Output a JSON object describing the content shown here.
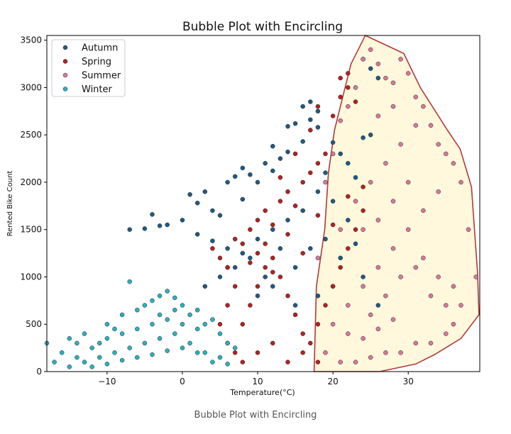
{
  "caption": "Bubble Plot with Encircling",
  "chart_data": {
    "type": "scatter",
    "title": "Bubble Plot with Encircling",
    "xlabel": "Temperature(°C)",
    "ylabel": "Rented Bike Count",
    "xlim": [
      -18,
      39.5
    ],
    "ylim": [
      0,
      3550
    ],
    "xticks": [
      -10,
      0,
      10,
      20,
      30
    ],
    "yticks": [
      0,
      500,
      1000,
      1500,
      2000,
      2500,
      3000,
      3500
    ],
    "xtick_labels": [
      "−10",
      "0",
      "10",
      "20",
      "30"
    ],
    "ytick_labels": [
      "0",
      "500",
      "1000",
      "1500",
      "2000",
      "2500",
      "3000",
      "3500"
    ],
    "grid": false,
    "legend_position": "top-left",
    "series": [
      {
        "name": "Autumn",
        "color": "#1f5a85",
        "points": [
          [
            -7,
            1500
          ],
          [
            -5,
            1510
          ],
          [
            -4,
            1660
          ],
          [
            -3,
            1540
          ],
          [
            -2,
            1550
          ],
          [
            0,
            1600
          ],
          [
            1,
            1870
          ],
          [
            2,
            1780
          ],
          [
            3,
            1900
          ],
          [
            4,
            1700
          ],
          [
            5,
            1650
          ],
          [
            6,
            2000
          ],
          [
            7,
            2060
          ],
          [
            8,
            1820
          ],
          [
            8,
            2150
          ],
          [
            9,
            2080
          ],
          [
            10,
            2000
          ],
          [
            11,
            2200
          ],
          [
            12,
            2120
          ],
          [
            12,
            2380
          ],
          [
            13,
            2250
          ],
          [
            14,
            2320
          ],
          [
            14,
            2590
          ],
          [
            15,
            2620
          ],
          [
            16,
            2430
          ],
          [
            16,
            2800
          ],
          [
            17,
            2660
          ],
          [
            17,
            2850
          ],
          [
            18,
            2750
          ],
          [
            18,
            2580
          ],
          [
            19,
            2100
          ],
          [
            20,
            2420
          ],
          [
            21,
            2300
          ],
          [
            22,
            2200
          ],
          [
            23,
            2050
          ],
          [
            24,
            2470
          ],
          [
            25,
            2500
          ],
          [
            25,
            3200
          ],
          [
            26,
            3100
          ],
          [
            24,
            3300
          ],
          [
            2,
            1450
          ],
          [
            4,
            1380
          ],
          [
            6,
            1300
          ],
          [
            8,
            1250
          ],
          [
            10,
            1400
          ],
          [
            12,
            1500
          ],
          [
            14,
            1600
          ],
          [
            16,
            1700
          ],
          [
            18,
            1900
          ],
          [
            20,
            1800
          ],
          [
            22,
            1600
          ],
          [
            6,
            1100
          ],
          [
            9,
            1200
          ],
          [
            11,
            1000
          ],
          [
            13,
            1300
          ],
          [
            15,
            1100
          ],
          [
            17,
            1300
          ],
          [
            19,
            1400
          ],
          [
            21,
            1200
          ],
          [
            23,
            1350
          ],
          [
            3,
            900
          ],
          [
            5,
            1000
          ],
          [
            7,
            1100
          ],
          [
            10,
            800
          ],
          [
            12,
            900
          ],
          [
            15,
            700
          ],
          [
            18,
            800
          ],
          [
            20,
            900
          ],
          [
            24,
            1000
          ],
          [
            26,
            700
          ]
        ]
      },
      {
        "name": "Spring",
        "color": "#b22222",
        "points": [
          [
            4,
            1300
          ],
          [
            5,
            1200
          ],
          [
            6,
            1100
          ],
          [
            7,
            1400
          ],
          [
            8,
            1350
          ],
          [
            9,
            1500
          ],
          [
            10,
            1600
          ],
          [
            11,
            1700
          ],
          [
            12,
            1550
          ],
          [
            13,
            1800
          ],
          [
            14,
            1900
          ],
          [
            15,
            1750
          ],
          [
            16,
            2000
          ],
          [
            17,
            2100
          ],
          [
            18,
            2200
          ],
          [
            19,
            2300
          ],
          [
            20,
            2700
          ],
          [
            21,
            2900
          ],
          [
            21,
            3100
          ],
          [
            22,
            3000
          ],
          [
            22,
            3150
          ],
          [
            23,
            2850
          ],
          [
            17,
            2550
          ],
          [
            18,
            2800
          ],
          [
            15,
            2300
          ],
          [
            13,
            2050
          ],
          [
            11,
            1350
          ],
          [
            9,
            1150
          ],
          [
            7,
            900
          ],
          [
            6,
            700
          ],
          [
            5,
            500
          ],
          [
            6,
            300
          ],
          [
            7,
            200
          ],
          [
            8,
            500
          ],
          [
            9,
            700
          ],
          [
            10,
            900
          ],
          [
            11,
            1100
          ],
          [
            12,
            1200
          ],
          [
            13,
            1000
          ],
          [
            14,
            800
          ],
          [
            15,
            600
          ],
          [
            16,
            400
          ],
          [
            17,
            300
          ],
          [
            18,
            500
          ],
          [
            19,
            700
          ],
          [
            20,
            900
          ],
          [
            21,
            1100
          ],
          [
            22,
            1300
          ],
          [
            23,
            1500
          ],
          [
            24,
            1700
          ],
          [
            8,
            100
          ],
          [
            10,
            200
          ],
          [
            12,
            300
          ],
          [
            14,
            100
          ],
          [
            16,
            200
          ],
          [
            18,
            100
          ],
          [
            10,
            1250
          ],
          [
            12,
            1050
          ],
          [
            14,
            1450
          ],
          [
            16,
            1250
          ],
          [
            18,
            1650
          ],
          [
            20,
            1550
          ],
          [
            22,
            1850
          ],
          [
            24,
            1950
          ]
        ]
      },
      {
        "name": "Summer",
        "color": "#d9779d",
        "points": [
          [
            18,
            1200
          ],
          [
            19,
            2000
          ],
          [
            20,
            2300
          ],
          [
            21,
            2650
          ],
          [
            22,
            2800
          ],
          [
            23,
            3000
          ],
          [
            24,
            3300
          ],
          [
            25,
            3400
          ],
          [
            26,
            3250
          ],
          [
            27,
            3100
          ],
          [
            28,
            3050
          ],
          [
            29,
            3300
          ],
          [
            30,
            3150
          ],
          [
            31,
            2900
          ],
          [
            32,
            2800
          ],
          [
            33,
            2600
          ],
          [
            34,
            2400
          ],
          [
            35,
            2300
          ],
          [
            36,
            2200
          ],
          [
            37,
            2000
          ],
          [
            38,
            1500
          ],
          [
            39,
            1000
          ],
          [
            37,
            700
          ],
          [
            36,
            500
          ],
          [
            35,
            400
          ],
          [
            33,
            300
          ],
          [
            31,
            300
          ],
          [
            29,
            200
          ],
          [
            27,
            200
          ],
          [
            25,
            150
          ],
          [
            23,
            100
          ],
          [
            21,
            100
          ],
          [
            19,
            200
          ],
          [
            20,
            500
          ],
          [
            22,
            700
          ],
          [
            24,
            900
          ],
          [
            26,
            1100
          ],
          [
            28,
            1300
          ],
          [
            30,
            1500
          ],
          [
            32,
            1700
          ],
          [
            34,
            1900
          ],
          [
            25,
            2000
          ],
          [
            27,
            2200
          ],
          [
            29,
            2400
          ],
          [
            31,
            2600
          ],
          [
            26,
            2700
          ],
          [
            28,
            2800
          ],
          [
            24,
            1500
          ],
          [
            26,
            1600
          ],
          [
            28,
            1800
          ],
          [
            30,
            2000
          ],
          [
            32,
            1200
          ],
          [
            34,
            1000
          ],
          [
            36,
            900
          ],
          [
            21,
            1500
          ],
          [
            23,
            1800
          ],
          [
            25,
            600
          ],
          [
            27,
            800
          ],
          [
            29,
            1000
          ],
          [
            31,
            1100
          ],
          [
            33,
            800
          ],
          [
            35,
            700
          ],
          [
            22,
            400
          ],
          [
            24,
            350
          ],
          [
            26,
            450
          ],
          [
            28,
            550
          ]
        ]
      },
      {
        "name": "Winter",
        "color": "#2bb0c0",
        "points": [
          [
            -18,
            300
          ],
          [
            -17,
            100
          ],
          [
            -16,
            200
          ],
          [
            -15,
            350
          ],
          [
            -14,
            150
          ],
          [
            -13,
            400
          ],
          [
            -12,
            250
          ],
          [
            -11,
            300
          ],
          [
            -10,
            500
          ],
          [
            -9,
            450
          ],
          [
            -8,
            600
          ],
          [
            -7,
            950
          ],
          [
            -6,
            650
          ],
          [
            -5,
            700
          ],
          [
            -4,
            750
          ],
          [
            -3,
            800
          ],
          [
            -2,
            850
          ],
          [
            -1,
            780
          ],
          [
            0,
            700
          ],
          [
            1,
            600
          ],
          [
            2,
            650
          ],
          [
            3,
            500
          ],
          [
            4,
            550
          ],
          [
            5,
            400
          ],
          [
            6,
            300
          ],
          [
            7,
            250
          ],
          [
            -15,
            50
          ],
          [
            -13,
            100
          ],
          [
            -11,
            150
          ],
          [
            -9,
            200
          ],
          [
            -7,
            250
          ],
          [
            -5,
            300
          ],
          [
            -3,
            350
          ],
          [
            -1,
            400
          ],
          [
            1,
            300
          ],
          [
            3,
            200
          ],
          [
            5,
            150
          ],
          [
            -12,
            50
          ],
          [
            -10,
            80
          ],
          [
            -8,
            120
          ],
          [
            -6,
            150
          ],
          [
            -4,
            180
          ],
          [
            -2,
            220
          ],
          [
            0,
            250
          ],
          [
            2,
            200
          ],
          [
            4,
            100
          ],
          [
            6,
            80
          ],
          [
            -14,
            300
          ],
          [
            -10,
            350
          ],
          [
            -6,
            450
          ],
          [
            -2,
            550
          ],
          [
            2,
            450
          ],
          [
            -8,
            400
          ],
          [
            -4,
            500
          ],
          [
            0,
            500
          ],
          [
            -3,
            600
          ],
          [
            -1,
            650
          ]
        ]
      }
    ],
    "hull": {
      "series": "Summer",
      "fill": "#fff8dc",
      "stroke": "#b03a3a",
      "vertices": [
        [
          24.3,
          3550
        ],
        [
          27.8,
          3420
        ],
        [
          29.4,
          3360
        ],
        [
          31.6,
          3000
        ],
        [
          35.2,
          2550
        ],
        [
          36.9,
          2350
        ],
        [
          38.4,
          1950
        ],
        [
          39.2,
          1050
        ],
        [
          39.4,
          600
        ],
        [
          37.0,
          350
        ],
        [
          33.5,
          180
        ],
        [
          31.0,
          80
        ],
        [
          26.2,
          0
        ],
        [
          17.5,
          0
        ],
        [
          17.8,
          900
        ],
        [
          18.9,
          1500
        ],
        [
          19.4,
          2100
        ],
        [
          20.2,
          2550
        ],
        [
          21.3,
          2900
        ],
        [
          22.4,
          3250
        ]
      ]
    }
  }
}
